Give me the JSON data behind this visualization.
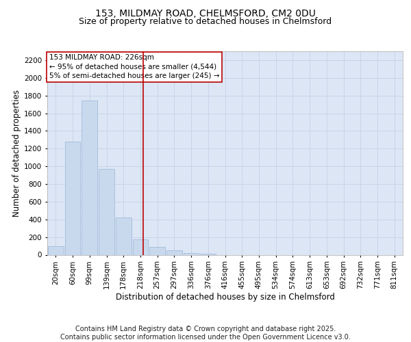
{
  "title_line1": "153, MILDMAY ROAD, CHELMSFORD, CM2 0DU",
  "title_line2": "Size of property relative to detached houses in Chelmsford",
  "xlabel": "Distribution of detached houses by size in Chelmsford",
  "ylabel": "Number of detached properties",
  "categories": [
    "20sqm",
    "60sqm",
    "99sqm",
    "139sqm",
    "178sqm",
    "218sqm",
    "257sqm",
    "297sqm",
    "336sqm",
    "376sqm",
    "416sqm",
    "455sqm",
    "495sqm",
    "534sqm",
    "574sqm",
    "613sqm",
    "653sqm",
    "692sqm",
    "732sqm",
    "771sqm",
    "811sqm"
  ],
  "values": [
    100,
    1280,
    1740,
    970,
    420,
    175,
    90,
    50,
    20,
    10,
    0,
    0,
    0,
    0,
    0,
    0,
    0,
    0,
    0,
    0,
    0
  ],
  "bar_color": "#c8d9ee",
  "bar_edgecolor": "#9ab3d5",
  "grid_color": "#c8d4e8",
  "background_color": "#dce6f5",
  "vline_x_index": 5.15,
  "vline_color": "#bb0000",
  "annotation_line1": "153 MILDMAY ROAD: 226sqm",
  "annotation_line2": "← 95% of detached houses are smaller (4,544)",
  "annotation_line3": "5% of semi-detached houses are larger (245) →",
  "annotation_box_edgecolor": "#bb0000",
  "ylim": [
    0,
    2300
  ],
  "yticks": [
    0,
    200,
    400,
    600,
    800,
    1000,
    1200,
    1400,
    1600,
    1800,
    2000,
    2200
  ],
  "footer_line1": "Contains HM Land Registry data © Crown copyright and database right 2025.",
  "footer_line2": "Contains public sector information licensed under the Open Government Licence v3.0.",
  "title_fontsize": 10,
  "subtitle_fontsize": 9,
  "tick_fontsize": 7.5,
  "label_fontsize": 8.5,
  "annotation_fontsize": 7.5,
  "footer_fontsize": 7
}
